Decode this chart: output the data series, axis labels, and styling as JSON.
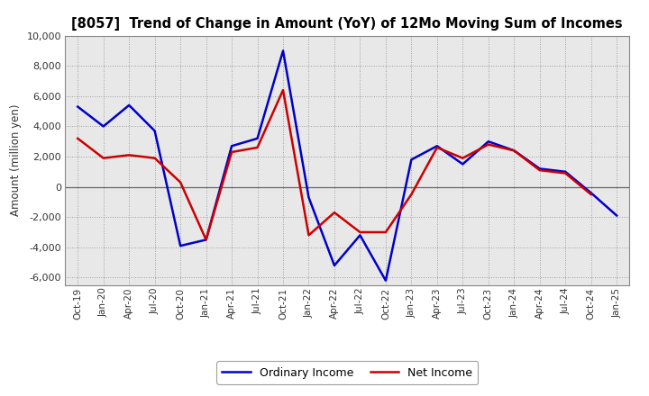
{
  "title": "[8057]  Trend of Change in Amount (YoY) of 12Mo Moving Sum of Incomes",
  "ylabel": "Amount (million yen)",
  "background_color": "#ffffff",
  "plot_bg_color": "#f0f0f0",
  "grid_color": "#aaaaaa",
  "x_labels": [
    "Oct-19",
    "Jan-20",
    "Apr-20",
    "Jul-20",
    "Oct-20",
    "Jan-21",
    "Apr-21",
    "Jul-21",
    "Oct-21",
    "Jan-22",
    "Apr-22",
    "Jul-22",
    "Oct-22",
    "Jan-23",
    "Apr-23",
    "Jul-23",
    "Oct-23",
    "Jan-24",
    "Apr-24",
    "Jul-24",
    "Oct-24",
    "Jan-25"
  ],
  "ordinary_income": [
    5300,
    4000,
    5400,
    3700,
    -3900,
    -3500,
    2700,
    3200,
    9000,
    -700,
    -5200,
    -3200,
    -6200,
    1800,
    2700,
    1500,
    3000,
    2400,
    1200,
    1000,
    -400,
    -1900
  ],
  "net_income": [
    3200,
    1900,
    2100,
    1900,
    300,
    -3500,
    2300,
    2600,
    6400,
    -3200,
    -1700,
    -3000,
    -3000,
    -500,
    2600,
    1900,
    2800,
    2400,
    1100,
    900,
    -500,
    null
  ],
  "ordinary_color": "#0000cc",
  "net_color": "#cc0000",
  "ylim": [
    -6500,
    10000
  ],
  "yticks": [
    -6000,
    -4000,
    -2000,
    0,
    2000,
    4000,
    6000,
    8000,
    10000
  ],
  "legend_labels": [
    "Ordinary Income",
    "Net Income"
  ],
  "line_width": 1.8
}
